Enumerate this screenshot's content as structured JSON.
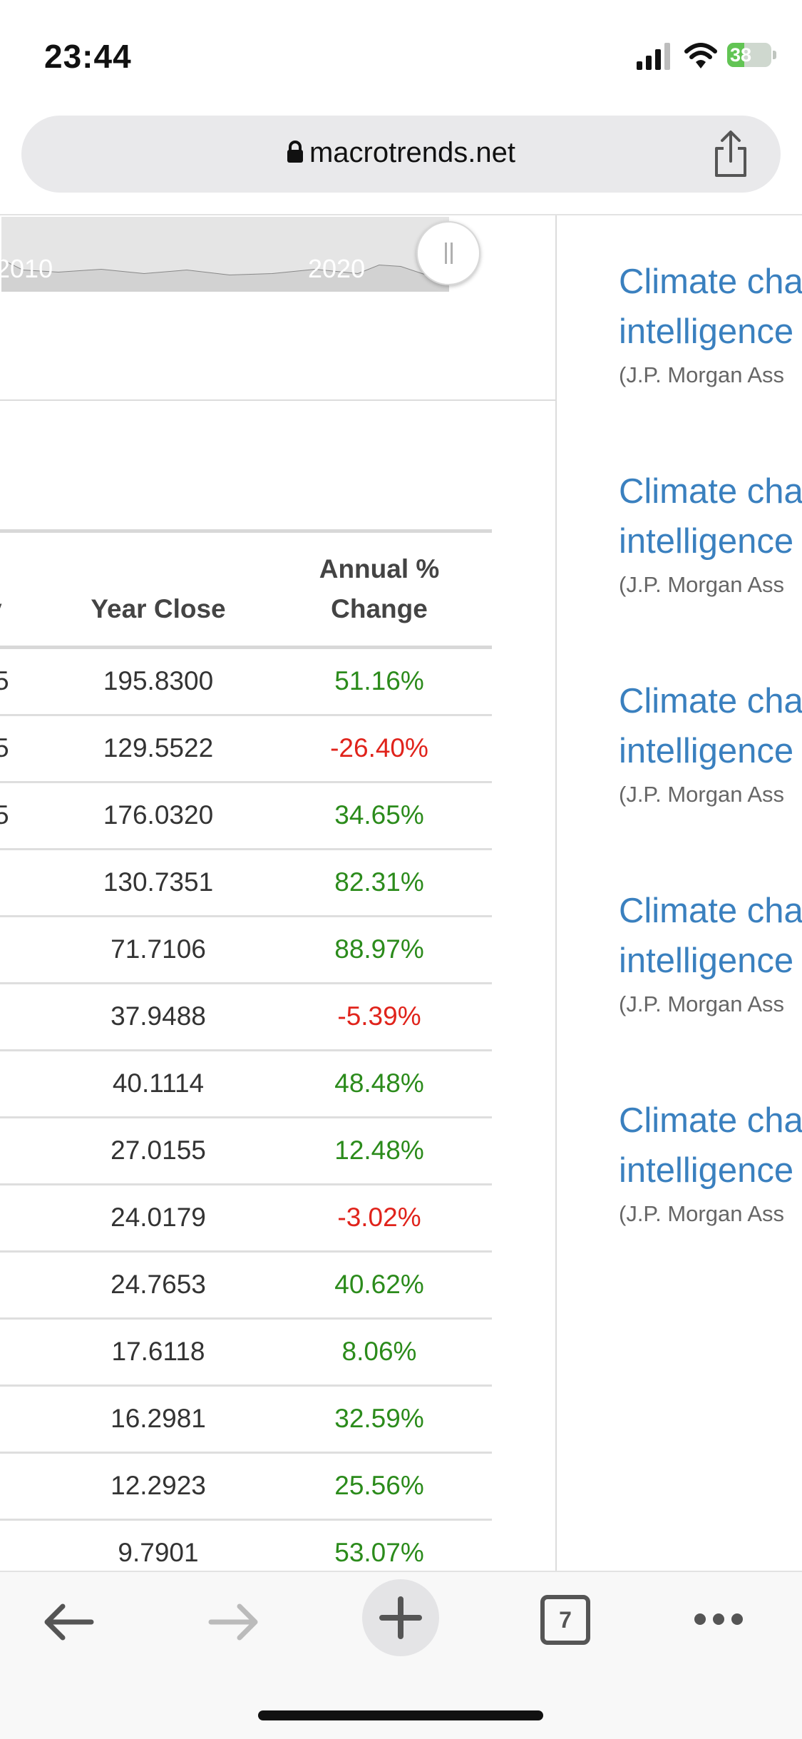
{
  "status_bar": {
    "time": "23:44",
    "battery_percent": "38",
    "battery_level": 0.38,
    "icons": [
      "signal-icon",
      "wifi-icon",
      "battery-icon"
    ]
  },
  "browser": {
    "url": "macrotrends.net",
    "tab_count": "7",
    "icons": [
      "lock-icon",
      "share-icon",
      "back-arrow-icon",
      "forward-arrow-icon",
      "new-tab-plus-icon",
      "tabs-icon",
      "more-icon"
    ]
  },
  "chart_navigator": {
    "labels": [
      "2010",
      "2020"
    ]
  },
  "table": {
    "headers": {
      "year_close": "Year Close",
      "annual_change_line1": "Annual %",
      "annual_change_line2": "Change"
    },
    "rows": [
      {
        "open_fragment": "5",
        "close": "195.8300",
        "change": "51.16%",
        "direction": "up"
      },
      {
        "open_fragment": "5",
        "close": "129.5522",
        "change": "-26.40%",
        "direction": "down"
      },
      {
        "open_fragment": "5",
        "close": "176.0320",
        "change": "34.65%",
        "direction": "up"
      },
      {
        "open_fragment": "",
        "close": "130.7351",
        "change": "82.31%",
        "direction": "up"
      },
      {
        "open_fragment": "",
        "close": "71.7106",
        "change": "88.97%",
        "direction": "up"
      },
      {
        "open_fragment": "",
        "close": "37.9488",
        "change": "-5.39%",
        "direction": "down"
      },
      {
        "open_fragment": "",
        "close": "40.1114",
        "change": "48.48%",
        "direction": "up"
      },
      {
        "open_fragment": "",
        "close": "27.0155",
        "change": "12.48%",
        "direction": "up"
      },
      {
        "open_fragment": "",
        "close": "24.0179",
        "change": "-3.02%",
        "direction": "down"
      },
      {
        "open_fragment": "",
        "close": "24.7653",
        "change": "40.62%",
        "direction": "up"
      },
      {
        "open_fragment": "",
        "close": "17.6118",
        "change": "8.06%",
        "direction": "up"
      },
      {
        "open_fragment": "",
        "close": "16.2981",
        "change": "32.59%",
        "direction": "up"
      },
      {
        "open_fragment": "",
        "close": "12.2923",
        "change": "25.56%",
        "direction": "up"
      },
      {
        "open_fragment": "",
        "close": "9.7901",
        "change": "53.07%",
        "direction": "up"
      }
    ]
  },
  "sidebar": {
    "articles": [
      {
        "title_line1": "Climate cha",
        "title_line2": "intelligence",
        "source": "(J.P. Morgan Ass"
      },
      {
        "title_line1": "Climate cha",
        "title_line2": "intelligence",
        "source": "(J.P. Morgan Ass"
      },
      {
        "title_line1": "Climate cha",
        "title_line2": "intelligence",
        "source": "(J.P. Morgan Ass"
      },
      {
        "title_line1": "Climate cha",
        "title_line2": "intelligence",
        "source": "(J.P. Morgan Ass"
      },
      {
        "title_line1": "Climate cha",
        "title_line2": "intelligence",
        "source": "(J.P. Morgan Ass"
      }
    ]
  },
  "colors": {
    "positive": "#2b8b1b",
    "negative": "#e0231b",
    "link": "#3a80bf"
  }
}
